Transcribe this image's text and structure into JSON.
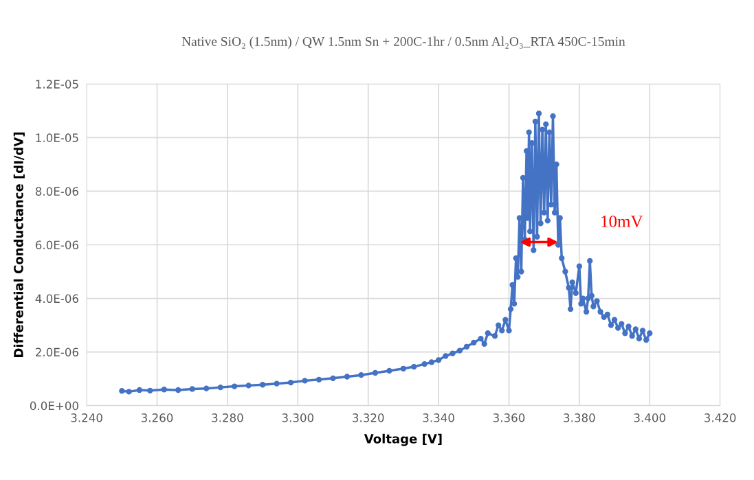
{
  "chart_data": {
    "type": "line",
    "title": "Native SiO₂ (1.5nm) / QW 1.5nm Sn + 200C-1hr / 0.5nm Al₂O₃_RTA 450C-15min",
    "xlabel": "Voltage [V]",
    "ylabel": "Differential Conductance [dI/dV]",
    "x": [
      3.25,
      3.252,
      3.255,
      3.258,
      3.262,
      3.266,
      3.27,
      3.274,
      3.278,
      3.282,
      3.286,
      3.29,
      3.294,
      3.298,
      3.302,
      3.306,
      3.31,
      3.314,
      3.318,
      3.322,
      3.326,
      3.33,
      3.333,
      3.336,
      3.338,
      3.34,
      3.342,
      3.344,
      3.346,
      3.348,
      3.35,
      3.352,
      3.353,
      3.354,
      3.356,
      3.357,
      3.358,
      3.359,
      3.36,
      3.3605,
      3.361,
      3.3615,
      3.362,
      3.3625,
      3.363,
      3.3635,
      3.364,
      3.3645,
      3.365,
      3.3653,
      3.3657,
      3.366,
      3.3665,
      3.367,
      3.3675,
      3.368,
      3.3685,
      3.369,
      3.3695,
      3.37,
      3.3705,
      3.371,
      3.3715,
      3.372,
      3.3725,
      3.373,
      3.3735,
      3.374,
      3.3745,
      3.375,
      3.376,
      3.377,
      3.3775,
      3.378,
      3.379,
      3.38,
      3.3805,
      3.381,
      3.382,
      3.3825,
      3.383,
      3.3835,
      3.384,
      3.385,
      3.386,
      3.387,
      3.388,
      3.389,
      3.39,
      3.391,
      3.392,
      3.393,
      3.394,
      3.395,
      3.396,
      3.397,
      3.398,
      3.399,
      3.4
    ],
    "series": [
      {
        "color": "#4472c4",
        "values": [
          5.5e-07,
          5.2e-07,
          5.8e-07,
          5.6e-07,
          6e-07,
          5.8e-07,
          6.2e-07,
          6.4e-07,
          6.8e-07,
          7.2e-07,
          7.5e-07,
          7.8e-07,
          8.2e-07,
          8.6e-07,
          9.3e-07,
          9.7e-07,
          1.02e-06,
          1.08e-06,
          1.14e-06,
          1.22e-06,
          1.3e-06,
          1.38e-06,
          1.45e-06,
          1.55e-06,
          1.62e-06,
          1.7e-06,
          1.85e-06,
          1.95e-06,
          2.05e-06,
          2.2e-06,
          2.35e-06,
          2.5e-06,
          2.3e-06,
          2.7e-06,
          2.6e-06,
          3e-06,
          2.8e-06,
          3.2e-06,
          2.8e-06,
          3.6e-06,
          4.5e-06,
          3.8e-06,
          5.5e-06,
          4.8e-06,
          7e-06,
          5e-06,
          8.5e-06,
          6.2e-06,
          9.5e-06,
          7e-06,
          1.02e-05,
          6.5e-06,
          9.8e-06,
          5.8e-06,
          1.06e-05,
          6.3e-06,
          1.09e-05,
          6.8e-06,
          1.03e-05,
          7.2e-06,
          1.05e-05,
          6.9e-06,
          1.02e-05,
          7.5e-06,
          1.08e-05,
          7.2e-06,
          9e-06,
          6e-06,
          7e-06,
          5.5e-06,
          5e-06,
          4.4e-06,
          3.6e-06,
          4.6e-06,
          4.2e-06,
          5.2e-06,
          3.8e-06,
          4e-06,
          3.5e-06,
          4e-06,
          5.4e-06,
          4.1e-06,
          3.7e-06,
          3.9e-06,
          3.5e-06,
          3.3e-06,
          3.4e-06,
          3e-06,
          3.2e-06,
          2.9e-06,
          3.05e-06,
          2.7e-06,
          2.95e-06,
          2.6e-06,
          2.85e-06,
          2.5e-06,
          2.8e-06,
          2.45e-06,
          2.7e-06
        ]
      }
    ],
    "xlim": [
      3.24,
      3.42
    ],
    "xticks": [
      {
        "value": 3.24,
        "label": "3.240"
      },
      {
        "value": 3.26,
        "label": "3.260"
      },
      {
        "value": 3.28,
        "label": "3.280"
      },
      {
        "value": 3.3,
        "label": "3.300"
      },
      {
        "value": 3.32,
        "label": "3.320"
      },
      {
        "value": 3.34,
        "label": "3.340"
      },
      {
        "value": 3.36,
        "label": "3.360"
      },
      {
        "value": 3.38,
        "label": "3.380"
      },
      {
        "value": 3.4,
        "label": "3.400"
      },
      {
        "value": 3.42,
        "label": "3.420"
      }
    ],
    "ylim": [
      0,
      1.2e-05
    ],
    "yticks": [
      {
        "value": 0,
        "label": "0.0E+00"
      },
      {
        "value": 2e-06,
        "label": "2.0E-06"
      },
      {
        "value": 4e-06,
        "label": "4.0E-06"
      },
      {
        "value": 6e-06,
        "label": "6.0E-06"
      },
      {
        "value": 8e-06,
        "label": "8.0E-06"
      },
      {
        "value": 1e-05,
        "label": "1.0E-05"
      },
      {
        "value": 1.2e-05,
        "label": "1.2E-05"
      }
    ],
    "grid": true,
    "marker": "circle",
    "line_style": "solid",
    "annotations": [
      {
        "text": "10mV",
        "x": 3.3745,
        "y": 6.1e-06
      }
    ]
  }
}
